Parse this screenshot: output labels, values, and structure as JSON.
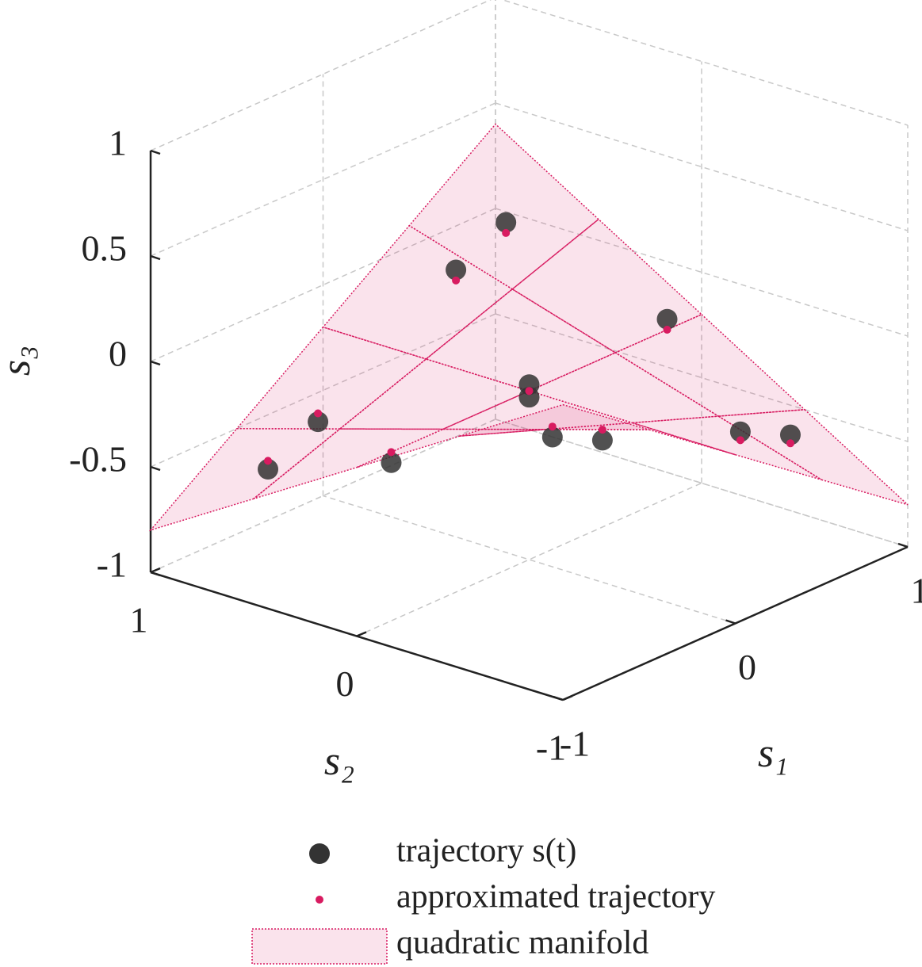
{
  "chart_data": {
    "type": "scatter3d",
    "xlabel": "s₁",
    "ylabel": "s₂",
    "zlabel": "s₃",
    "xlim": [
      -1,
      1
    ],
    "ylim": [
      -1,
      1
    ],
    "zlim": [
      -1,
      1
    ],
    "xticks": [
      -1,
      0,
      1
    ],
    "yticks": [
      -1,
      0,
      1
    ],
    "zticks": [
      -1,
      -0.5,
      0,
      0.5,
      1
    ],
    "grid": true,
    "surface": {
      "name": "quadratic manifold",
      "color": "#d81b60",
      "s1": [
        -1,
        -0.5,
        0,
        0.5,
        1
      ],
      "s2": [
        -1,
        -0.5,
        0,
        0.5,
        1
      ],
      "s3": [
        [
          0.4,
          0.1,
          -0.2,
          -0.5,
          -0.8
        ],
        [
          0.1,
          -0.05,
          -0.2,
          -0.35,
          -0.5
        ],
        [
          -0.2,
          -0.2,
          -0.2,
          -0.2,
          -0.2
        ],
        [
          -0.5,
          -0.35,
          -0.2,
          -0.05,
          0.1
        ],
        [
          -0.8,
          -0.5,
          -0.2,
          0.1,
          0.4
        ]
      ]
    },
    "series": [
      {
        "name": "trajectory s(t)",
        "color": "#333333",
        "s1": [
          0,
          0.4,
          0.69,
          0.8,
          0.69,
          0.4,
          0,
          -0.4,
          -0.69,
          -0.8,
          -0.69,
          -0.4
        ],
        "s2": [
          0,
          0.69,
          0.69,
          0,
          -0.69,
          -0.69,
          0,
          0.69,
          0.69,
          0,
          -0.69,
          -0.69
        ],
        "s3": [
          -0.17,
          0.02,
          0.14,
          -0.15,
          -0.45,
          -0.33,
          -0.23,
          -0.41,
          -0.53,
          -0.25,
          0.04,
          -0.08
        ]
      },
      {
        "name": "approximated trajectory",
        "color": "#d81b60",
        "s1": [
          0,
          0.4,
          0.69,
          0.8,
          0.69,
          0.4,
          0,
          -0.4,
          -0.69,
          -0.8,
          -0.69,
          -0.4
        ],
        "s2": [
          0,
          0.69,
          0.69,
          0,
          -0.69,
          -0.69,
          0,
          0.69,
          0.69,
          0,
          -0.69,
          -0.69
        ],
        "s3": [
          -0.2,
          -0.03,
          0.09,
          -0.2,
          -0.49,
          -0.37,
          -0.2,
          -0.37,
          -0.49,
          -0.2,
          0.09,
          -0.03
        ]
      }
    ]
  }
}
